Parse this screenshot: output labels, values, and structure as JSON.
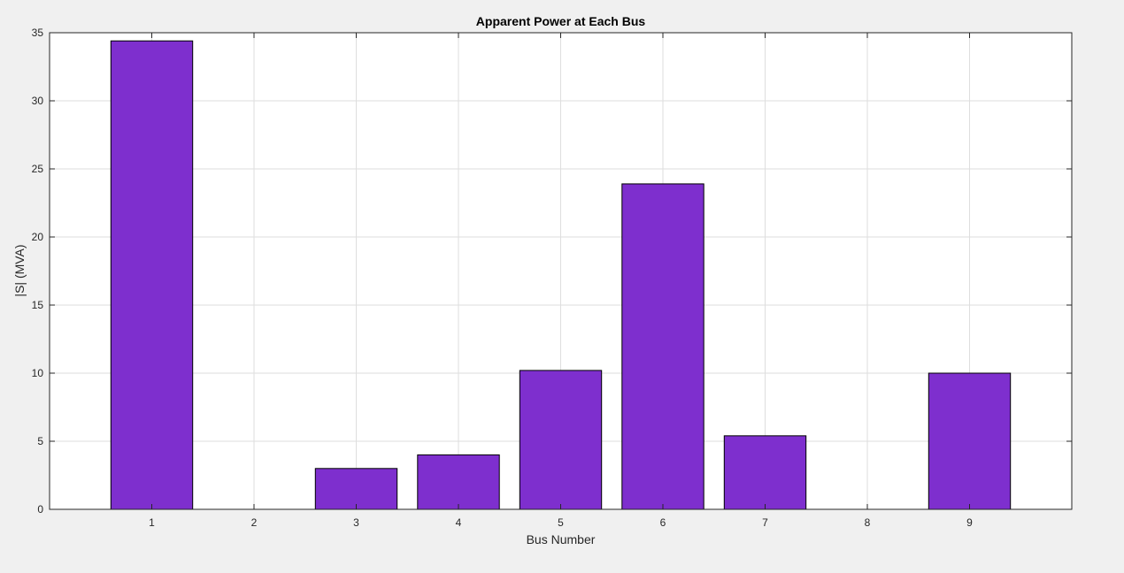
{
  "chart_data": {
    "type": "bar",
    "title": "Apparent Power at Each Bus",
    "xlabel": "Bus Number",
    "ylabel": "|S| (MVA)",
    "categories": [
      "1",
      "2",
      "3",
      "4",
      "5",
      "6",
      "7",
      "8",
      "9"
    ],
    "values": [
      34.4,
      0,
      3.0,
      4.0,
      10.2,
      23.9,
      5.4,
      0,
      10.0
    ],
    "xlim": [
      0,
      10
    ],
    "ylim": [
      0,
      35
    ],
    "yticks": [
      0,
      5,
      10,
      15,
      20,
      25,
      30,
      35
    ],
    "grid": true,
    "bar_color": "#7e2fce",
    "bar_edge_color": "#000000"
  }
}
